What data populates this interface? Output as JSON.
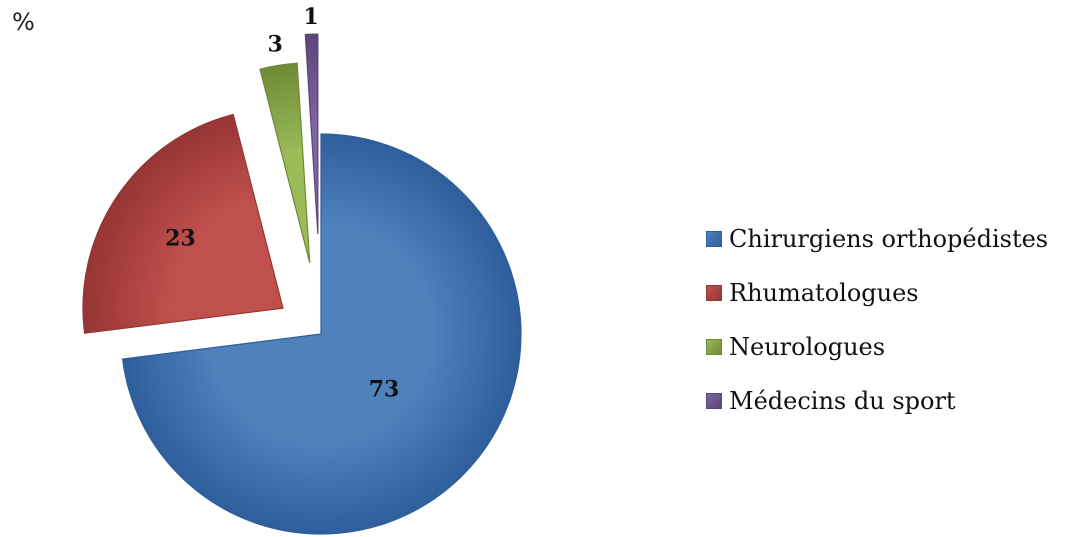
{
  "unit_label": "%",
  "chart_data": {
    "type": "pie",
    "title": "",
    "unit": "%",
    "start_angle_deg": 0,
    "direction": "clockwise",
    "exploded": true,
    "legend_position": "right",
    "slices": [
      {
        "label": "Chirurgiens orthopédistes",
        "value": 73,
        "color": "#4f81bd",
        "shade": "#2f5e9c"
      },
      {
        "label": "Rhumatologues",
        "value": 23,
        "color": "#c0504d",
        "shade": "#963634"
      },
      {
        "label": "Neurologues",
        "value": 3,
        "color": "#9bbb59",
        "shade": "#6e8a35"
      },
      {
        "label": "Médecins du sport",
        "value": 1,
        "color": "#8064a2",
        "shade": "#5c4577"
      }
    ]
  }
}
